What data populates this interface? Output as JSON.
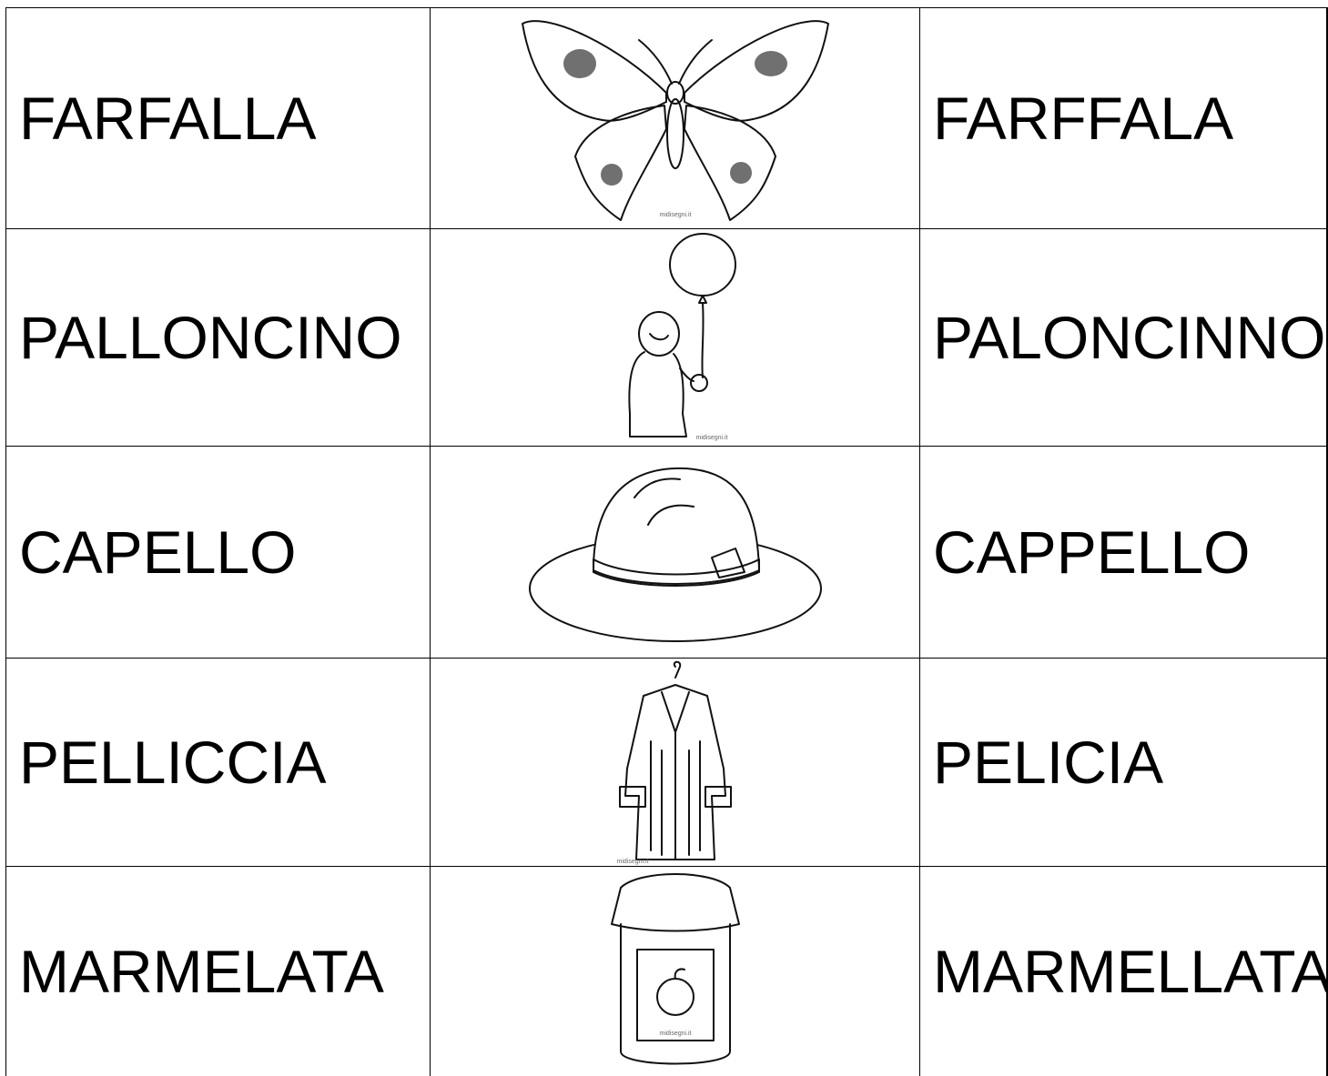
{
  "table": {
    "rows": [
      {
        "left": "FARFALLA",
        "right": "FARFFALA",
        "credit": "midisegni.it"
      },
      {
        "left": "PALLONCINO",
        "right": "PALONCINNO",
        "credit": "midisegni.it"
      },
      {
        "left": "CAPELLO",
        "right": "CAPPELLO"
      },
      {
        "left": "PELLICCIA",
        "right": "PELICIA",
        "credit": "midisegni.it"
      },
      {
        "left": "MARMELATA",
        "right": "MARMELLATA",
        "credit": "midisegni.it"
      }
    ]
  }
}
